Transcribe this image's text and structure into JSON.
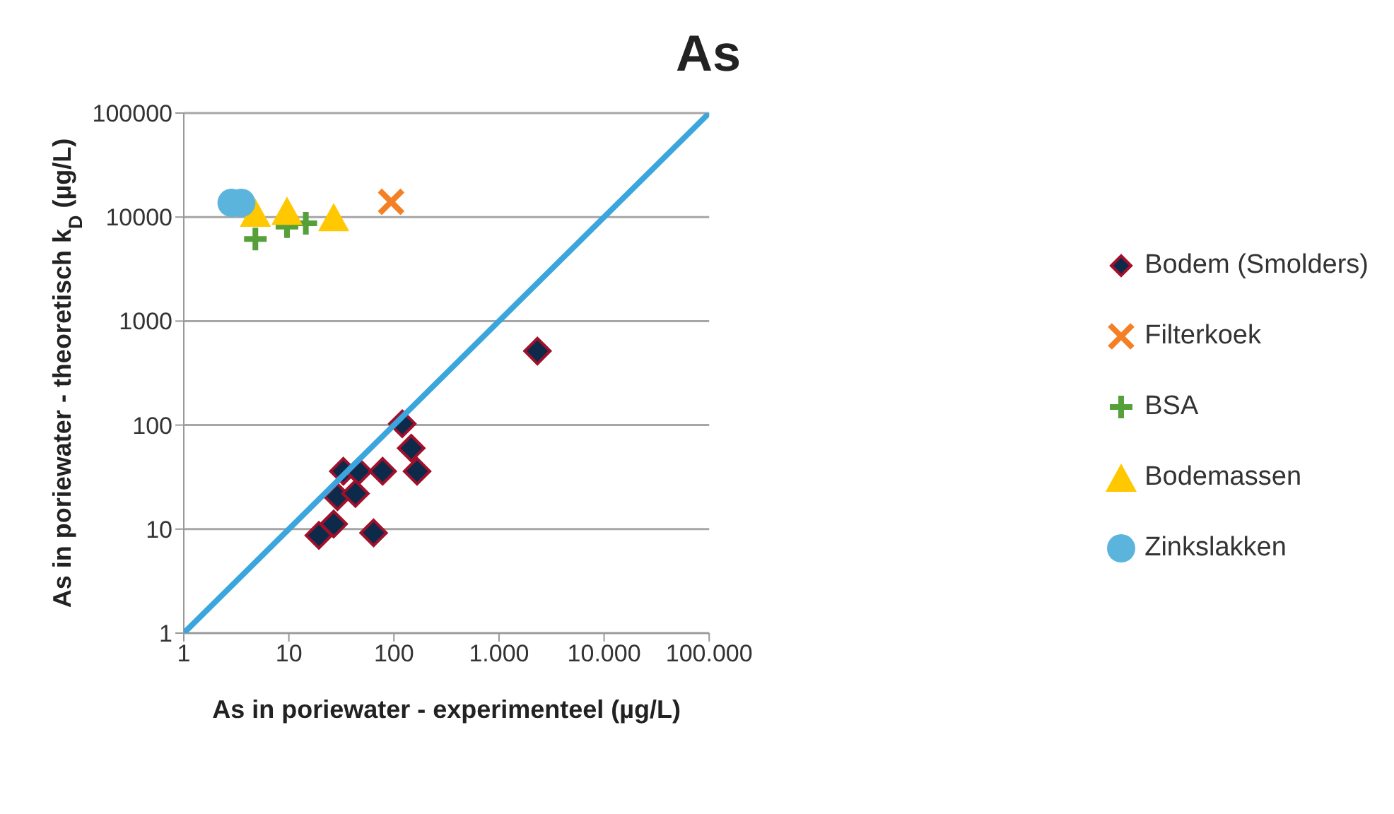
{
  "chart_data": {
    "type": "scatter",
    "title": "As",
    "xlabel": "As in poriewater  - experimenteel (µg/L)",
    "ylabel": "As in poriewater  - theoretisch k$_{D}$ (µg/L)",
    "log": "xy",
    "grid": "y",
    "legend": "right",
    "xlim": [
      1,
      100000
    ],
    "xticks": [
      1,
      10,
      100,
      {
        "value": 1000,
        "label": "1.000"
      },
      {
        "value": 10000,
        "label": "10.000"
      },
      {
        "value": 100000,
        "label": "100.000"
      }
    ],
    "ylim": [
      1,
      100000
    ],
    "yticks": [
      1,
      10,
      100,
      1000,
      10000,
      100000
    ],
    "series": [
      {
        "name": "Bodem (Smolders)",
        "color": "#0d2a4a",
        "marker": "diamond",
        "x": [
          19.3,
          26.7,
          33,
          46,
          29,
          43,
          78,
          120,
          146,
          166,
          64,
          2320
        ],
        "values": [
          8.7,
          11.2,
          36,
          36,
          20.5,
          22,
          36,
          103,
          60,
          36,
          9.2,
          515
        ]
      },
      {
        "name": "Filterkoek",
        "color": "#f47f24",
        "marker": "x",
        "x": [
          94
        ],
        "values": [
          14000
        ]
      },
      {
        "name": "BSA",
        "color": "#56a03a",
        "marker": "cross",
        "x": [
          4.8,
          9.6,
          14.5
        ],
        "values": [
          6150,
          8100,
          8700
        ]
      },
      {
        "name": "Bodemassen",
        "color": "#ffc800",
        "marker": "triangle",
        "x": [
          4.8,
          9.6,
          26.7
        ],
        "values": [
          11000,
          11500,
          10000
        ]
      },
      {
        "name": "Zinkslakken",
        "color": "#5bb4dc",
        "marker": "circle",
        "x": [
          2.85,
          3.53
        ],
        "values": [
          13700,
          13700
        ]
      },
      {
        "type": "line",
        "color": "#3aa6dd",
        "marker": "none",
        "x": [
          1,
          100000
        ],
        "values": [
          1,
          100000
        ]
      }
    ]
  }
}
